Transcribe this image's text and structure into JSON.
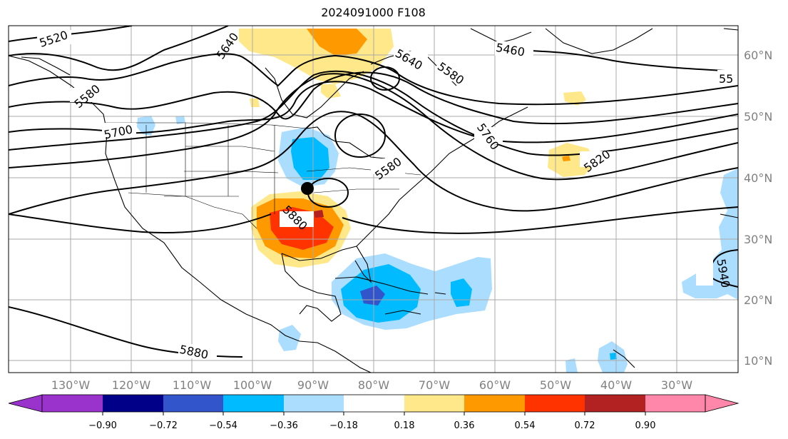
{
  "title": "2024091000 F108",
  "lon_labels": [
    "130°W",
    "120°W",
    "110°W",
    "100°W",
    "90°W",
    "80°W",
    "70°W",
    "60°W",
    "50°W",
    "40°W",
    "30°W"
  ],
  "lat_labels": [
    "60°N",
    "50°N",
    "40°N",
    "30°N",
    "20°N",
    "10°N"
  ],
  "contour_labels": [
    "5520",
    "5640",
    "5580",
    "5700",
    "5460",
    "5640",
    "5580",
    "5580",
    "5760",
    "5820",
    "5880",
    "5880",
    "5940",
    "5880",
    "55"
  ],
  "colorbar": {
    "ticks": [
      "−0.90",
      "−0.72",
      "−0.54",
      "−0.36",
      "−0.18",
      "0.18",
      "0.36",
      "0.54",
      "0.72",
      "0.90"
    ],
    "colors": [
      "#9933cc",
      "#000088",
      "#3355cc",
      "#00bbff",
      "#aaddff",
      "#ffffff",
      "#ffe88a",
      "#ff9900",
      "#ff3300",
      "#b22222",
      "#ff88aa"
    ]
  },
  "colors": {
    "positive_strong": "#ff3300",
    "positive_mid": "#ff9900",
    "positive_weak": "#ffe88a",
    "negative_weak": "#aaddff",
    "negative_mid": "#00bbff",
    "negative_strong": "#3355cc",
    "negative_max": "#9933cc",
    "contour": "#000000",
    "grid": "#aaaaaa"
  }
}
